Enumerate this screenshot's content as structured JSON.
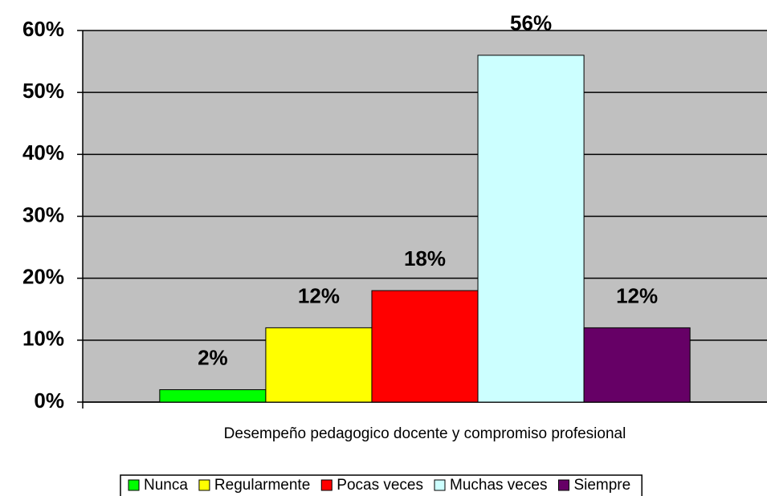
{
  "chart_data": {
    "type": "bar",
    "categories": [
      "Desempeño pedagogico docente y compromiso profesional"
    ],
    "series": [
      {
        "name": "Nunca",
        "color": "#00ff00",
        "values": [
          2
        ],
        "value_labels": [
          "2%"
        ]
      },
      {
        "name": "Regularmente",
        "color": "#ffff00",
        "values": [
          12
        ],
        "value_labels": [
          "12%"
        ]
      },
      {
        "name": "Pocas veces",
        "color": "#ff0000",
        "values": [
          18
        ],
        "value_labels": [
          "18%"
        ]
      },
      {
        "name": "Muchas veces",
        "color": "#ccffff",
        "values": [
          56
        ],
        "value_labels": [
          "56%"
        ]
      },
      {
        "name": "Siempre",
        "color": "#660066",
        "values": [
          12
        ],
        "value_labels": [
          "12%"
        ]
      }
    ],
    "ylim": [
      0,
      60
    ],
    "yticks": [
      {
        "value": 0,
        "label": "0%"
      },
      {
        "value": 10,
        "label": "10%"
      },
      {
        "value": 20,
        "label": "20%"
      },
      {
        "value": 30,
        "label": "30%"
      },
      {
        "value": 40,
        "label": "40%"
      },
      {
        "value": 50,
        "label": "50%"
      },
      {
        "value": 60,
        "label": "60%"
      }
    ],
    "grid": true
  }
}
